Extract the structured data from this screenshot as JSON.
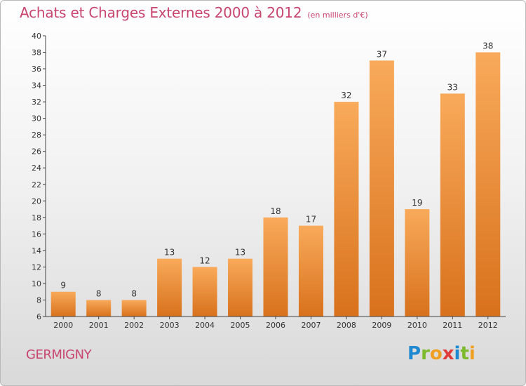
{
  "header": {
    "title": "Achats et Charges Externes 2000 à 2012",
    "subtitle": "(en milliers d'€)"
  },
  "footer": {
    "commune": "GERMIGNY",
    "logo_letters": [
      {
        "char": "P",
        "color": "#1e88d0"
      },
      {
        "char": "r",
        "color": "#7dbb2c"
      },
      {
        "char": "o",
        "color": "#f0a020"
      },
      {
        "char": "x",
        "color": "#e03a3a"
      },
      {
        "char": "i",
        "color": "#1e88d0"
      },
      {
        "char": "t",
        "color": "#7dbb2c"
      },
      {
        "char": "i",
        "color": "#f0a020"
      }
    ]
  },
  "colors": {
    "title": "#c8456f",
    "bar_light": "#f8aa5a",
    "bar_dark": "#d8711c",
    "label": "#333333"
  },
  "chart_data": {
    "type": "bar",
    "title": "Achats et Charges Externes 2000 à 2012",
    "unit": "(en milliers d'€)",
    "categories": [
      "2000",
      "2001",
      "2002",
      "2003",
      "2004",
      "2005",
      "2006",
      "2007",
      "2008",
      "2009",
      "2010",
      "2011",
      "2012"
    ],
    "values": [
      9,
      8,
      8,
      13,
      12,
      13,
      18,
      17,
      32,
      37,
      19,
      33,
      38
    ],
    "ylim": [
      6,
      40
    ],
    "yticks": [
      6,
      8,
      10,
      12,
      14,
      16,
      18,
      20,
      22,
      24,
      26,
      28,
      30,
      32,
      34,
      36,
      38,
      40
    ],
    "grid": false,
    "legend": "none"
  }
}
